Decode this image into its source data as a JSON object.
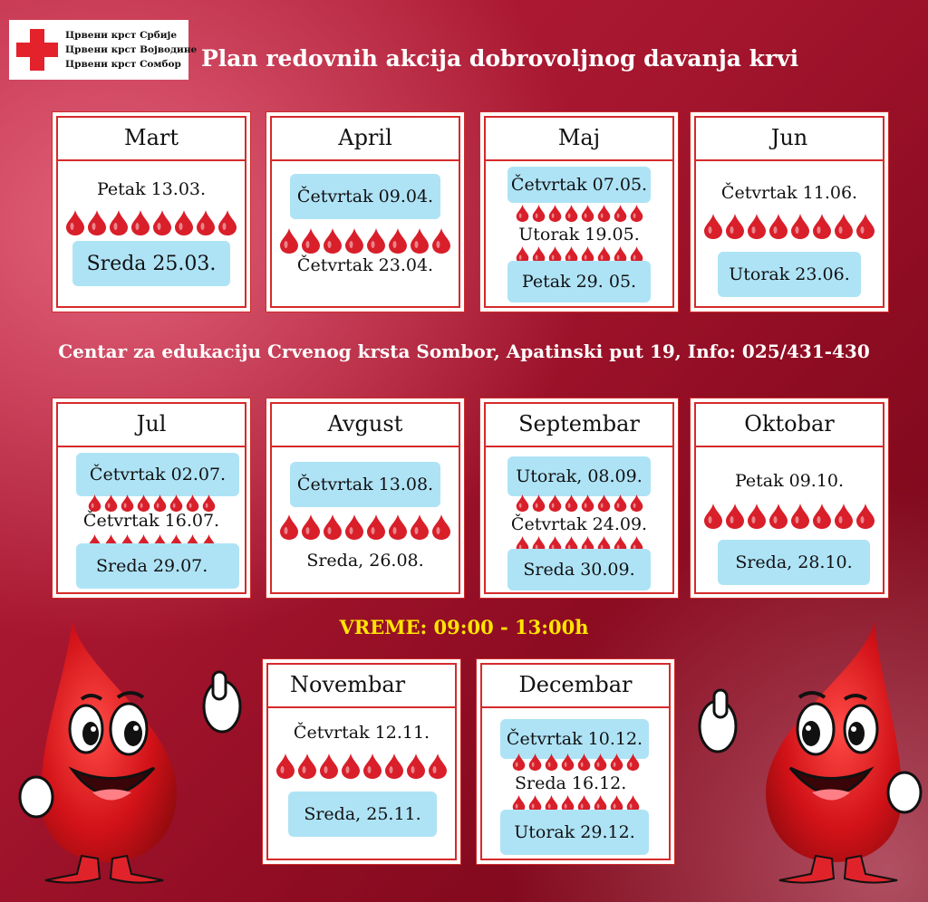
{
  "logo": {
    "lines": [
      "Црвени крст Србије",
      "Црвени крст Војводине",
      "Црвени крст Сомбор"
    ]
  },
  "title": "Plan redovnih akcija dobrovoljnog davanja krvi",
  "center_info": "Centar za edukaciju Crvenog krsta Sombor, Apatinski put 19, Info: 025/431-430",
  "time": "VREME: 09:00 - 13:00h",
  "colors": {
    "red": "#d62a2a",
    "drop": "#d81f2a",
    "highlight": "#aee3f6",
    "time": "#ffe500"
  },
  "months": [
    {
      "name": "Mart",
      "dates": [
        {
          "text": "Petak 13.03.",
          "hl": false
        },
        {
          "text": "Sreda 25.03.",
          "hl": true
        }
      ]
    },
    {
      "name": "April",
      "dates": [
        {
          "text": "Četvrtak 09.04.",
          "hl": true
        },
        {
          "text": "Četvrtak 23.04.",
          "hl": false
        }
      ]
    },
    {
      "name": "Maj",
      "dates": [
        {
          "text": "Četvrtak 07.05.",
          "hl": true
        },
        {
          "text": "Utorak 19.05.",
          "hl": false
        },
        {
          "text": "Petak 29. 05.",
          "hl": true
        }
      ]
    },
    {
      "name": "Jun",
      "dates": [
        {
          "text": "Četvrtak 11.06.",
          "hl": false
        },
        {
          "text": "Utorak 23.06.",
          "hl": true
        }
      ]
    },
    {
      "name": "Jul",
      "dates": [
        {
          "text": "Četvrtak 02.07.",
          "hl": true
        },
        {
          "text": "Četvrtak 16.07.",
          "hl": false
        },
        {
          "text": "Sreda 29.07.",
          "hl": true
        }
      ]
    },
    {
      "name": "Avgust",
      "dates": [
        {
          "text": "Četvrtak 13.08.",
          "hl": true
        },
        {
          "text": "Sreda, 26.08.",
          "hl": false
        }
      ]
    },
    {
      "name": "Septembar",
      "dates": [
        {
          "text": "Utorak, 08.09.",
          "hl": true
        },
        {
          "text": "Četvrtak 24.09.",
          "hl": false
        },
        {
          "text": "Sreda 30.09.",
          "hl": true
        }
      ]
    },
    {
      "name": "Oktobar",
      "dates": [
        {
          "text": "Petak 09.10.",
          "hl": false
        },
        {
          "text": "Sreda, 28.10.",
          "hl": true
        }
      ]
    },
    {
      "name": "Novembar",
      "dates": [
        {
          "text": "Četvrtak 12.11.",
          "hl": false
        },
        {
          "text": "Sreda, 25.11.",
          "hl": true
        }
      ]
    },
    {
      "name": "Decembar",
      "dates": [
        {
          "text": "Četvrtak 10.12.",
          "hl": true
        },
        {
          "text": "Sreda 16.12.",
          "hl": false
        },
        {
          "text": "Utorak 29.12.",
          "hl": true
        }
      ]
    }
  ]
}
